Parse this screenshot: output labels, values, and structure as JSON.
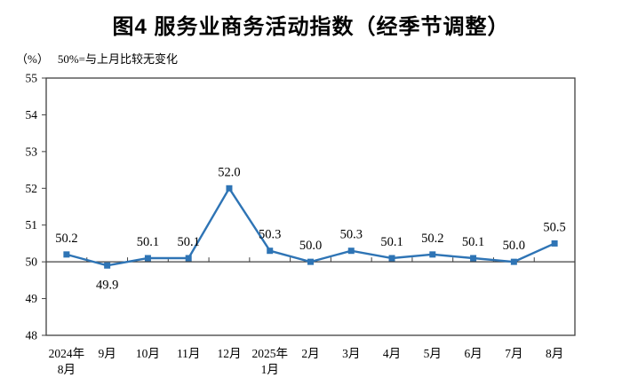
{
  "title": "图4 服务业商务活动指数（经季节调整）",
  "subtitle": {
    "unit": "（%）",
    "note": "50%=与上月比较无变化"
  },
  "colors": {
    "line": "#2E74B5",
    "axis": "#404040",
    "text": "#000000",
    "background": "#FFFFFF"
  },
  "chart_data": {
    "type": "line",
    "title": "图4 服务业商务活动指数（经季节调整）",
    "xlabel": "",
    "ylabel": "（%）",
    "note": "50%=与上月比较无变化",
    "categories": [
      "2024年\n8月",
      "9月",
      "10月",
      "11月",
      "12月",
      "2025年\n1月",
      "2月",
      "3月",
      "4月",
      "5月",
      "6月",
      "7月",
      "8月"
    ],
    "values": [
      50.2,
      49.9,
      50.1,
      50.1,
      52.0,
      50.3,
      50.0,
      50.3,
      50.1,
      50.2,
      50.1,
      50.0,
      50.5
    ],
    "label_positions": [
      "above",
      "below",
      "above",
      "above",
      "above",
      "above",
      "above",
      "above",
      "above",
      "above",
      "above",
      "above",
      "above"
    ],
    "ylim": [
      48,
      55
    ],
    "ytick_step": 1,
    "reference_line": 50,
    "grid": false,
    "legend": "none",
    "marker": "square",
    "series_name": "服务业商务活动指数"
  }
}
